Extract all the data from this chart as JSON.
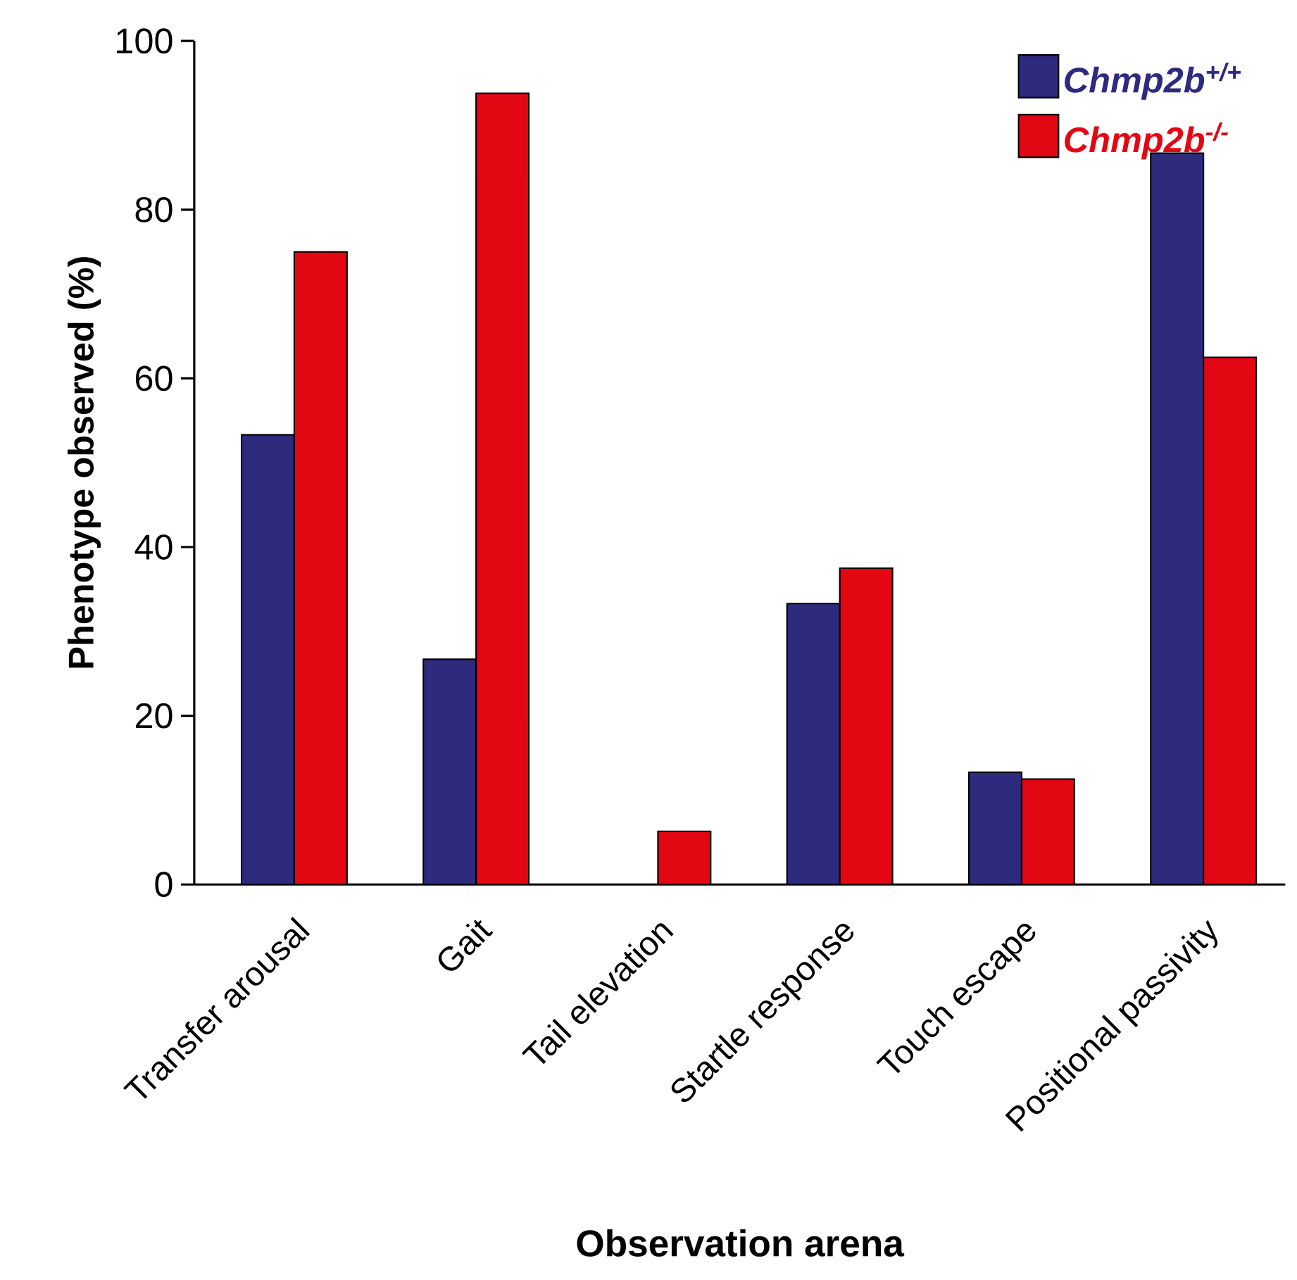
{
  "chart_data": {
    "type": "bar",
    "xlabel": "Observation arena",
    "ylabel": "Phenotype observed (%)",
    "categories": [
      "Transfer arousal",
      "Gait",
      "Tail elevation",
      "Startle response",
      "Touch escape",
      "Positional passivity"
    ],
    "series": [
      {
        "name": "*Chmp2b*$^{+/+}$",
        "color": "#2e2a7e",
        "values": [
          53.3,
          26.7,
          0,
          33.3,
          13.3,
          86.7
        ]
      },
      {
        "name": "*Chmp2b*$^{-/-}$",
        "color": "#e30613",
        "values": [
          75,
          93.8,
          6.3,
          37.5,
          12.5,
          62.5
        ]
      }
    ],
    "ylim": [
      0,
      100
    ],
    "yticks": [
      0,
      20,
      40,
      60,
      80,
      100
    ],
    "grid": false,
    "legend": "top right"
  }
}
